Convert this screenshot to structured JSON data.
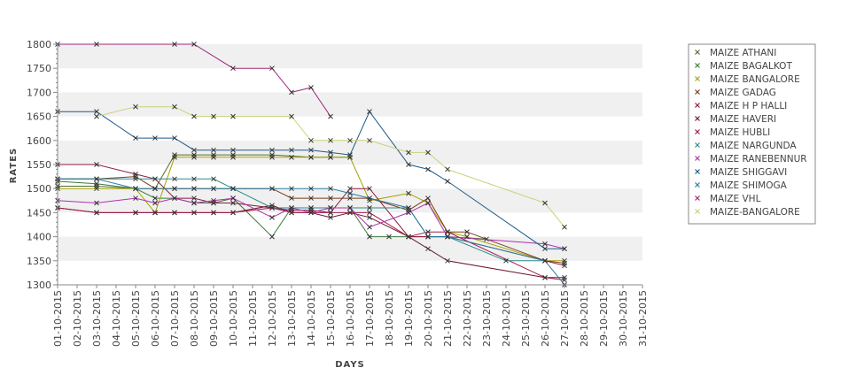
{
  "chart_data": {
    "type": "line",
    "title": "",
    "xlabel": "DAYS",
    "ylabel": "RATES",
    "ylim": [
      1300,
      1800
    ],
    "yticks": [
      1300,
      1350,
      1400,
      1450,
      1500,
      1550,
      1600,
      1650,
      1700,
      1750,
      1800
    ],
    "grid": "alternating horizontal bands",
    "legend_position": "right",
    "categories": [
      "01-10-2015",
      "02-10-2015",
      "03-10-2015",
      "04-10-2015",
      "05-10-2015",
      "06-10-2015",
      "07-10-2015",
      "08-10-2015",
      "09-10-2015",
      "10-10-2015",
      "11-10-2015",
      "12-10-2015",
      "13-10-2015",
      "14-10-2015",
      "15-10-2015",
      "16-10-2015",
      "17-10-2015",
      "18-10-2015",
      "19-10-2015",
      "20-10-2015",
      "21-10-2015",
      "22-10-2015",
      "23-10-2015",
      "24-10-2015",
      "25-10-2015",
      "26-10-2015",
      "27-10-2015",
      "28-10-2015",
      "29-10-2015",
      "30-10-2015",
      "31-10-2015"
    ],
    "series": [
      {
        "name": "MAIZE ATHANI",
        "color": "#556b2f",
        "points": [
          [
            0,
            1505
          ],
          [
            2,
            1505
          ],
          [
            4,
            1500
          ],
          [
            5,
            1500
          ],
          [
            6,
            1570
          ],
          [
            7,
            1570
          ],
          [
            8,
            1570
          ],
          [
            9,
            1570
          ],
          [
            11,
            1570
          ],
          [
            13,
            1565
          ],
          [
            14,
            1565
          ],
          [
            15,
            1565
          ]
        ]
      },
      {
        "name": "MAIZE BAGALKOT",
        "color": "#3c7a3c",
        "points": [
          [
            0,
            1515
          ],
          [
            2,
            1510
          ],
          [
            4,
            1500
          ],
          [
            5,
            1480
          ],
          [
            6,
            1480
          ],
          [
            7,
            1470
          ],
          [
            8,
            1470
          ],
          [
            9,
            1480
          ],
          [
            11,
            1400
          ],
          [
            12,
            1460
          ],
          [
            13,
            1460
          ],
          [
            14,
            1460
          ],
          [
            15,
            1460
          ],
          [
            16,
            1400
          ],
          [
            17,
            1400
          ],
          [
            18,
            1400
          ],
          [
            19,
            1400
          ],
          [
            20,
            1400
          ],
          [
            22,
            1395
          ]
        ]
      },
      {
        "name": "MAIZE BANGALORE",
        "color": "#a3a300",
        "points": [
          [
            0,
            1500
          ],
          [
            2,
            1500
          ],
          [
            4,
            1500
          ],
          [
            5,
            1450
          ],
          [
            6,
            1565
          ],
          [
            7,
            1565
          ],
          [
            8,
            1565
          ],
          [
            9,
            1565
          ],
          [
            11,
            1565
          ],
          [
            12,
            1565
          ],
          [
            13,
            1565
          ],
          [
            14,
            1565
          ],
          [
            15,
            1565
          ],
          [
            16,
            1475
          ],
          [
            18,
            1490
          ],
          [
            19,
            1470
          ],
          [
            20,
            1410
          ],
          [
            21,
            1400
          ],
          [
            25,
            1350
          ],
          [
            26,
            1350
          ]
        ]
      },
      {
        "name": "MAIZE GADAG",
        "color": "#7a3c1a",
        "points": [
          [
            0,
            1520
          ],
          [
            2,
            1520
          ],
          [
            4,
            1525
          ],
          [
            5,
            1500
          ],
          [
            6,
            1500
          ],
          [
            7,
            1500
          ],
          [
            8,
            1500
          ],
          [
            9,
            1500
          ],
          [
            11,
            1500
          ],
          [
            12,
            1480
          ],
          [
            13,
            1480
          ],
          [
            14,
            1480
          ],
          [
            15,
            1480
          ],
          [
            16,
            1480
          ],
          [
            18,
            1455
          ],
          [
            19,
            1480
          ],
          [
            20,
            1410
          ],
          [
            21,
            1410
          ],
          [
            25,
            1350
          ],
          [
            26,
            1345
          ]
        ]
      },
      {
        "name": "MAIZE H P HALLI",
        "color": "#8b1a3c",
        "points": [
          [
            0,
            1550
          ],
          [
            2,
            1550
          ],
          [
            4,
            1530
          ],
          [
            5,
            1520
          ],
          [
            6,
            1480
          ],
          [
            7,
            1480
          ],
          [
            8,
            1470
          ],
          [
            9,
            1470
          ],
          [
            11,
            1460
          ],
          [
            12,
            1455
          ],
          [
            13,
            1455
          ],
          [
            14,
            1450
          ],
          [
            15,
            1500
          ],
          [
            16,
            1500
          ],
          [
            18,
            1400
          ],
          [
            19,
            1400
          ],
          [
            20,
            1400
          ],
          [
            25,
            1350
          ],
          [
            26,
            1340
          ]
        ]
      },
      {
        "name": "MAIZE HAVERI",
        "color": "#6b1a2a",
        "points": [
          [
            0,
            1460
          ],
          [
            2,
            1450
          ],
          [
            4,
            1450
          ],
          [
            5,
            1450
          ],
          [
            6,
            1450
          ],
          [
            7,
            1450
          ],
          [
            8,
            1450
          ],
          [
            9,
            1450
          ],
          [
            11,
            1465
          ],
          [
            12,
            1450
          ],
          [
            13,
            1450
          ],
          [
            14,
            1440
          ],
          [
            15,
            1450
          ],
          [
            16,
            1440
          ],
          [
            18,
            1400
          ],
          [
            19,
            1375
          ],
          [
            20,
            1350
          ],
          [
            25,
            1315
          ],
          [
            26,
            1315
          ]
        ]
      },
      {
        "name": "MAIZE HUBLI",
        "color": "#a01a4a",
        "points": [
          [
            0,
            1460
          ],
          [
            2,
            1450
          ],
          [
            4,
            1450
          ],
          [
            5,
            1450
          ],
          [
            6,
            1450
          ],
          [
            7,
            1450
          ],
          [
            8,
            1450
          ],
          [
            9,
            1450
          ],
          [
            11,
            1460
          ],
          [
            12,
            1450
          ],
          [
            13,
            1450
          ],
          [
            14,
            1450
          ],
          [
            15,
            1450
          ],
          [
            16,
            1450
          ],
          [
            18,
            1400
          ],
          [
            19,
            1410
          ],
          [
            20,
            1410
          ],
          [
            25,
            1315
          ],
          [
            26,
            1310
          ]
        ]
      },
      {
        "name": "MAIZE NARGUNDA",
        "color": "#2a8a8a",
        "points": [
          [
            0,
            1520
          ],
          [
            2,
            1520
          ],
          [
            4,
            1520
          ],
          [
            5,
            1520
          ],
          [
            6,
            1520
          ],
          [
            7,
            1520
          ],
          [
            8,
            1520
          ],
          [
            9,
            1500
          ],
          [
            11,
            1460
          ],
          [
            12,
            1460
          ],
          [
            13,
            1460
          ],
          [
            14,
            1460
          ],
          [
            15,
            1460
          ],
          [
            16,
            1460
          ],
          [
            18,
            1460
          ],
          [
            19,
            1400
          ],
          [
            20,
            1400
          ],
          [
            23,
            1350
          ],
          [
            25,
            1350
          ]
        ]
      },
      {
        "name": "MAIZE RANEBENNUR",
        "color": "#b030b0",
        "points": [
          [
            0,
            1475
          ],
          [
            2,
            1470
          ],
          [
            4,
            1480
          ],
          [
            5,
            1470
          ],
          [
            6,
            1480
          ],
          [
            7,
            1470
          ],
          [
            8,
            1475
          ],
          [
            9,
            1480
          ],
          [
            11,
            1440
          ],
          [
            12,
            1460
          ],
          [
            13,
            1450
          ],
          [
            14,
            1460
          ],
          [
            15,
            1460
          ],
          [
            16,
            1420
          ],
          [
            18,
            1450
          ],
          [
            19,
            1470
          ],
          [
            20,
            1400
          ],
          [
            25,
            1385
          ],
          [
            26,
            1375
          ]
        ]
      },
      {
        "name": "MAIZE SHIGGAVI",
        "color": "#1a5a8a",
        "points": [
          [
            0,
            1660
          ],
          [
            2,
            1660
          ],
          [
            4,
            1605
          ],
          [
            5,
            1605
          ],
          [
            6,
            1605
          ],
          [
            7,
            1580
          ],
          [
            8,
            1580
          ],
          [
            9,
            1580
          ],
          [
            11,
            1580
          ],
          [
            12,
            1580
          ],
          [
            13,
            1580
          ],
          [
            14,
            1575
          ],
          [
            15,
            1570
          ],
          [
            16,
            1660
          ],
          [
            18,
            1550
          ],
          [
            19,
            1540
          ],
          [
            20,
            1515
          ],
          [
            25,
            1375
          ],
          [
            26,
            1375
          ]
        ]
      },
      {
        "name": "MAIZE SHIMOGA",
        "color": "#2a7aa0",
        "points": [
          [
            0,
            1520
          ],
          [
            2,
            1520
          ],
          [
            4,
            1500
          ],
          [
            5,
            1500
          ],
          [
            6,
            1500
          ],
          [
            7,
            1500
          ],
          [
            8,
            1500
          ],
          [
            9,
            1500
          ],
          [
            11,
            1500
          ],
          [
            12,
            1500
          ],
          [
            13,
            1500
          ],
          [
            14,
            1500
          ],
          [
            15,
            1490
          ],
          [
            16,
            1480
          ],
          [
            18,
            1460
          ],
          [
            19,
            1400
          ],
          [
            20,
            1400
          ],
          [
            25,
            1350
          ],
          [
            26,
            1300
          ]
        ]
      },
      {
        "name": "MAIZE VHL",
        "color": "#a0287a",
        "points": [
          [
            0,
            1800
          ],
          [
            2,
            1800
          ],
          [
            6,
            1800
          ],
          [
            7,
            1800
          ],
          [
            9,
            1750
          ],
          [
            11,
            1750
          ],
          [
            12,
            1700
          ],
          [
            13,
            1710
          ],
          [
            14,
            1650
          ]
        ]
      },
      {
        "name": "MAIZE-BANGALORE",
        "color": "#c8d27a",
        "points": [
          [
            2,
            1650
          ],
          [
            4,
            1670
          ],
          [
            6,
            1670
          ],
          [
            7,
            1650
          ],
          [
            8,
            1650
          ],
          [
            9,
            1650
          ],
          [
            12,
            1650
          ],
          [
            13,
            1600
          ],
          [
            14,
            1600
          ],
          [
            15,
            1600
          ],
          [
            16,
            1600
          ],
          [
            18,
            1575
          ],
          [
            19,
            1575
          ],
          [
            20,
            1540
          ],
          [
            25,
            1470
          ],
          [
            26,
            1420
          ]
        ]
      }
    ]
  }
}
